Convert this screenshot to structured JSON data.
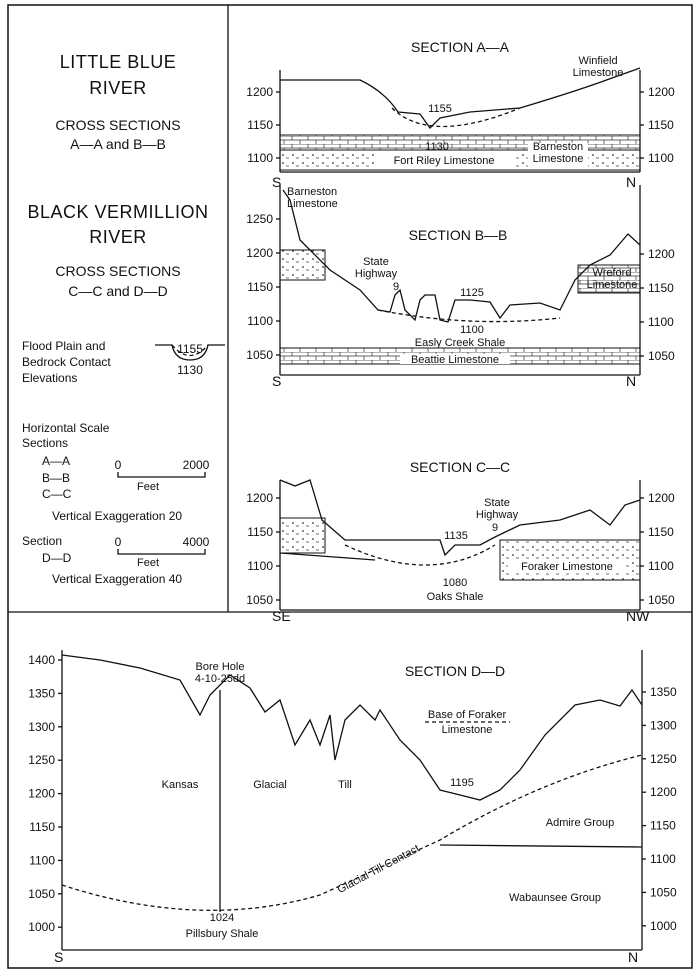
{
  "left_panel": {
    "little_blue": {
      "title": [
        "LITTLE BLUE",
        "RIVER"
      ],
      "subtitle": [
        "CROSS SECTIONS",
        "A—A and B—B"
      ]
    },
    "black_vermillion": {
      "title": [
        "BLACK VERMILLION",
        "RIVER"
      ],
      "subtitle": [
        "CROSS SECTIONS",
        "C—C and D—D"
      ]
    },
    "elevation_key": {
      "label": [
        "Flood Plain and",
        "Bedrock Contact",
        "Elevations"
      ],
      "flood_plain": "1155",
      "bedrock": "1130"
    },
    "horizontal_scale": {
      "title": [
        "Horizontal Scale",
        "Sections"
      ],
      "sections": [
        "A—A",
        "B—B",
        "C—C"
      ],
      "start": "0",
      "end": "2000",
      "unit": "Feet",
      "vertical": "Vertical Exaggeration 20"
    },
    "section_dd": {
      "label": [
        "Section",
        "D—D"
      ],
      "start": "0",
      "end": "4000",
      "unit": "Feet",
      "vertical": "Vertical Exaggeration 40"
    }
  },
  "sections": [
    {
      "title": "SECTION A—A",
      "left_ticks": [
        "1200",
        "1150",
        "1100"
      ],
      "right_ticks": [
        "1200",
        "1150",
        "1100"
      ],
      "ends": [
        "S",
        "N"
      ],
      "labels": [
        "1155",
        "1130",
        "Fort Riley Limestone",
        "Barneston",
        "Limestone",
        "Winfield",
        "Limestone"
      ]
    },
    {
      "title": "SECTION B—B",
      "left_ticks": [
        "1250",
        "1200",
        "1150",
        "1100",
        "1050"
      ],
      "right_ticks": [
        "1200",
        "1150",
        "1100",
        "1050"
      ],
      "ends": [
        "S",
        "N"
      ],
      "labels": [
        "Barneston",
        "Limestone",
        "State",
        "Highway",
        "9",
        "1125",
        "1100",
        "Easly Creek Shale",
        "Beattie Limestone",
        "Wreford",
        "Limestone"
      ]
    },
    {
      "title": "SECTION C—C",
      "left_ticks": [
        "1200",
        "1150",
        "1100",
        "1050"
      ],
      "right_ticks": [
        "1200",
        "1150",
        "1100",
        "1050"
      ],
      "ends": [
        "SE",
        "NW"
      ],
      "labels": [
        "1135",
        "State",
        "Highway",
        "9",
        "1080",
        "Oaks Shale",
        "Foraker Limestone"
      ]
    },
    {
      "title": "SECTION D—D",
      "left_ticks": [
        "1400",
        "1350",
        "1300",
        "1250",
        "1200",
        "1150",
        "1100",
        "1050",
        "1000"
      ],
      "right_ticks": [
        "1350",
        "1300",
        "1250",
        "1200",
        "1150",
        "1100",
        "1050",
        "1000"
      ],
      "ends": [
        "S",
        "N"
      ],
      "labels": [
        "Bore Hole",
        "4-10-25dd",
        "Base of Foraker",
        "Limestone",
        "Kansas",
        "Glacial",
        "Till",
        "1195",
        "Admire Group",
        "Glacial Till Contact",
        "Wabaunsee Group",
        "1024",
        "Pillsbury Shale"
      ]
    }
  ]
}
